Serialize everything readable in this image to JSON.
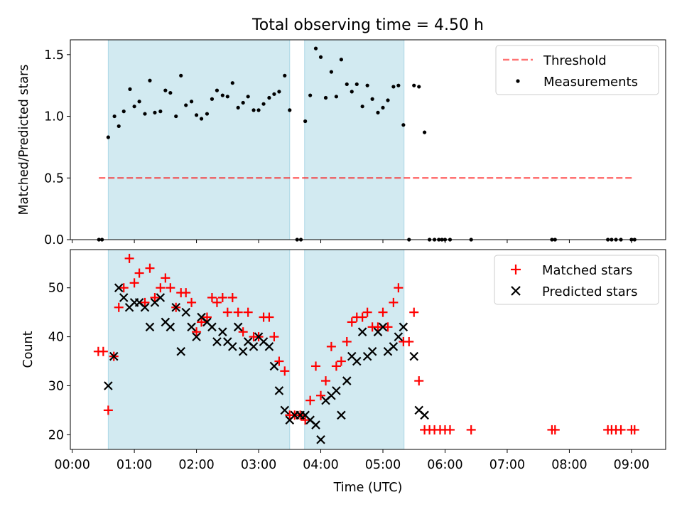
{
  "figure": {
    "title": "Total observing time = 4.50 h",
    "x_label": "Time (UTC)",
    "x_ticks": [
      "00:00",
      "01:00",
      "02:00",
      "03:00",
      "04:00",
      "05:00",
      "06:00",
      "07:00",
      "08:00",
      "09:00"
    ]
  },
  "colors": {
    "observing_window": "#add8e6",
    "threshold": "#ff0000",
    "matched": "#ff0000",
    "predicted": "#000000",
    "measurements": "#000000"
  },
  "chart_data": [
    {
      "type": "scatter",
      "ylabel": "Matched/Predicted stars",
      "x_unit": "hours UTC",
      "xlim": [
        -0.03,
        9.55
      ],
      "ylim": [
        0,
        1.62
      ],
      "y_ticks": [
        "0.0",
        "0.5",
        "1.0",
        "1.5"
      ],
      "y_tick_values": [
        0,
        0.5,
        1.0,
        1.5
      ],
      "shaded_windows": [
        [
          0.58,
          3.5
        ],
        [
          3.74,
          5.34
        ]
      ],
      "legend_position": "upper right",
      "threshold": {
        "name": "Threshold",
        "y": 0.5,
        "x": [
          0.43,
          9.03
        ]
      },
      "series": [
        {
          "name": "Measurements",
          "x": [
            0.43,
            0.48,
            0.58,
            0.68,
            0.75,
            0.83,
            0.93,
            1.0,
            1.08,
            1.17,
            1.25,
            1.33,
            1.42,
            1.5,
            1.58,
            1.67,
            1.75,
            1.83,
            1.92,
            2.0,
            2.08,
            2.17,
            2.25,
            2.33,
            2.42,
            2.5,
            2.58,
            2.67,
            2.75,
            2.83,
            2.92,
            3.0,
            3.08,
            3.17,
            3.25,
            3.33,
            3.42,
            3.5,
            3.62,
            3.68,
            3.75,
            3.83,
            3.92,
            4.0,
            4.08,
            4.17,
            4.25,
            4.33,
            4.42,
            4.5,
            4.58,
            4.67,
            4.75,
            4.83,
            4.92,
            5.0,
            5.08,
            5.17,
            5.25,
            5.33,
            5.42,
            5.5,
            5.58,
            5.67,
            5.75,
            5.83,
            5.9,
            5.95,
            6.0,
            6.08,
            6.42,
            7.72,
            7.77,
            8.62,
            8.68,
            8.75,
            8.83,
            9.0,
            9.05
          ],
          "y": [
            0,
            0,
            0.83,
            1.0,
            0.92,
            1.04,
            1.22,
            1.08,
            1.12,
            1.02,
            1.29,
            1.03,
            1.04,
            1.21,
            1.19,
            1.0,
            1.33,
            1.09,
            1.12,
            1.01,
            0.98,
            1.02,
            1.14,
            1.21,
            1.17,
            1.16,
            1.27,
            1.07,
            1.11,
            1.16,
            1.05,
            1.05,
            1.1,
            1.15,
            1.18,
            1.2,
            1.33,
            1.05,
            0,
            0,
            0.96,
            1.17,
            1.55,
            1.48,
            1.15,
            1.36,
            1.16,
            1.46,
            1.26,
            1.2,
            1.26,
            1.08,
            1.25,
            1.14,
            1.03,
            1.07,
            1.13,
            1.24,
            1.25,
            0.93,
            0,
            1.25,
            1.24,
            0.87,
            0,
            0,
            0,
            0,
            0,
            0,
            0,
            0,
            0,
            0,
            0,
            0,
            0,
            0,
            0
          ]
        }
      ]
    },
    {
      "type": "scatter",
      "ylabel": "Count",
      "x_unit": "hours UTC",
      "xlim": [
        -0.03,
        9.55
      ],
      "ylim": [
        17,
        57.8
      ],
      "y_ticks": [
        "20",
        "30",
        "40",
        "50"
      ],
      "y_tick_values": [
        20,
        30,
        40,
        50
      ],
      "shaded_windows": [
        [
          0.58,
          3.5
        ],
        [
          3.74,
          5.34
        ]
      ],
      "legend_position": "upper right",
      "series": [
        {
          "name": "Matched stars",
          "x": [
            0.42,
            0.5,
            0.58,
            0.67,
            0.75,
            0.83,
            0.92,
            1.0,
            1.08,
            1.17,
            1.25,
            1.33,
            1.42,
            1.5,
            1.58,
            1.67,
            1.75,
            1.83,
            1.92,
            2.0,
            2.08,
            2.17,
            2.25,
            2.33,
            2.42,
            2.5,
            2.58,
            2.67,
            2.75,
            2.83,
            2.92,
            3.0,
            3.08,
            3.17,
            3.25,
            3.33,
            3.42,
            3.5,
            3.58,
            3.67,
            3.75,
            3.83,
            3.92,
            4.0,
            4.08,
            4.17,
            4.25,
            4.33,
            4.42,
            4.5,
            4.58,
            4.67,
            4.75,
            4.83,
            4.92,
            5.0,
            5.08,
            5.17,
            5.25,
            5.33,
            5.42,
            5.5,
            5.58,
            5.67,
            5.75,
            5.83,
            5.92,
            6.0,
            6.08,
            6.42,
            7.72,
            7.77,
            8.62,
            8.68,
            8.75,
            8.83,
            9.0,
            9.05
          ],
          "y": [
            37,
            37,
            25,
            36,
            46,
            50,
            56,
            51,
            53,
            47,
            54,
            48,
            50,
            52,
            50,
            46,
            49,
            49,
            47,
            41,
            43,
            44,
            48,
            47,
            48,
            45,
            48,
            45,
            41,
            45,
            40,
            40,
            44,
            44,
            40,
            35,
            33,
            24,
            24,
            24,
            23,
            27,
            34,
            28,
            31,
            38,
            34,
            35,
            39,
            43,
            44,
            44,
            45,
            42,
            42,
            45,
            42,
            47,
            50,
            39,
            39,
            45,
            31,
            21,
            21,
            21,
            21,
            21,
            21,
            21,
            21,
            21,
            21,
            21,
            21,
            21,
            21,
            21
          ]
        },
        {
          "name": "Predicted stars",
          "x": [
            0.58,
            0.67,
            0.75,
            0.83,
            0.92,
            1.0,
            1.08,
            1.17,
            1.25,
            1.33,
            1.42,
            1.5,
            1.58,
            1.67,
            1.75,
            1.83,
            1.92,
            2.0,
            2.08,
            2.17,
            2.25,
            2.33,
            2.42,
            2.5,
            2.58,
            2.67,
            2.75,
            2.83,
            2.92,
            3.0,
            3.08,
            3.17,
            3.25,
            3.33,
            3.42,
            3.5,
            3.58,
            3.67,
            3.75,
            3.83,
            3.92,
            4.0,
            4.08,
            4.17,
            4.25,
            4.33,
            4.42,
            4.5,
            4.58,
            4.67,
            4.75,
            4.83,
            4.92,
            5.0,
            5.08,
            5.17,
            5.25,
            5.33,
            5.5,
            5.58,
            5.67
          ],
          "y": [
            30,
            36,
            50,
            48,
            46,
            47,
            47,
            46,
            42,
            47,
            48,
            43,
            42,
            46,
            37,
            45,
            42,
            40,
            44,
            43,
            42,
            39,
            41,
            39,
            38,
            42,
            37,
            39,
            38,
            40,
            39,
            38,
            34,
            29,
            25,
            23,
            24,
            24,
            24,
            23,
            22,
            19,
            27,
            28,
            29,
            24,
            31,
            36,
            35,
            41,
            36,
            37,
            41,
            42,
            37,
            38,
            40,
            42,
            36,
            25,
            24
          ]
        }
      ]
    }
  ]
}
